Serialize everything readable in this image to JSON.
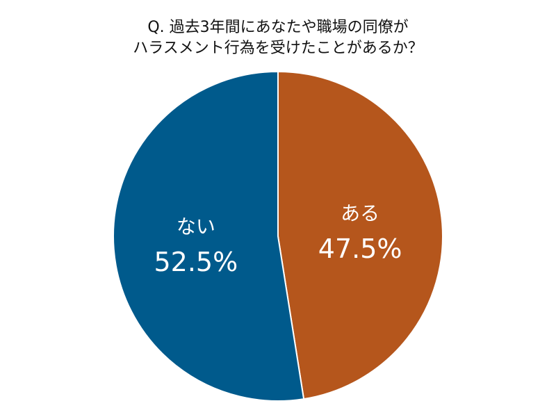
{
  "chart_data": {
    "type": "pie",
    "title": [
      "Q. 過去3年間にあなたや職場の同僚が",
      "ハラスメント行為を受けたことがあるか？"
    ],
    "categories": [
      "ある",
      "ない"
    ],
    "values": [
      47.5,
      52.5
    ],
    "value_labels": [
      "47.5%",
      "52.5%"
    ],
    "colors": [
      "#b5561c",
      "#005a8c"
    ]
  }
}
